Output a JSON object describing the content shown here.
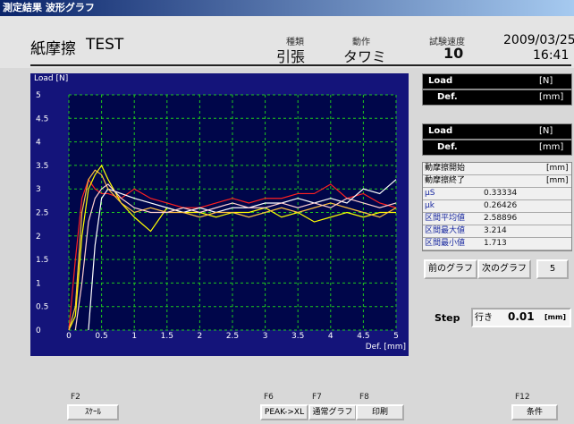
{
  "window": {
    "title": "測定結果 波形グラフ"
  },
  "header": {
    "material": "紙摩擦",
    "sample": "TEST",
    "type_label": "種類",
    "type": "引張",
    "action_label": "動作",
    "action": "タワミ",
    "speed_label": "試験速度",
    "speed": 10,
    "date": "2009/03/25",
    "time": "16:41"
  },
  "chart_data": {
    "type": "line",
    "ylabel": "Load [N]",
    "xlabel": "Def. [mm]",
    "x": [
      0,
      0.1,
      0.2,
      0.3,
      0.4,
      0.5,
      0.6,
      0.8,
      1,
      1.25,
      1.5,
      1.75,
      2,
      2.25,
      2.5,
      2.75,
      3,
      3.25,
      3.5,
      3.75,
      4,
      4.25,
      4.5,
      4.75,
      5
    ],
    "series": [
      {
        "color": "#ff2020",
        "values": [
          0,
          1.5,
          2.8,
          3.2,
          3.0,
          2.9,
          2.9,
          2.8,
          3.0,
          2.8,
          2.7,
          2.6,
          2.6,
          2.7,
          2.8,
          2.7,
          2.8,
          2.8,
          2.9,
          2.9,
          3.1,
          2.8,
          2.9,
          2.7,
          2.6
        ]
      },
      {
        "color": "#ffff00",
        "values": [
          0,
          0.3,
          2.0,
          3.0,
          3.3,
          3.5,
          3.2,
          2.7,
          2.4,
          2.1,
          2.6,
          2.5,
          2.5,
          2.4,
          2.5,
          2.5,
          2.6,
          2.4,
          2.5,
          2.3,
          2.4,
          2.5,
          2.4,
          2.5,
          2.5
        ]
      },
      {
        "color": "#ffffff",
        "values": [
          null,
          null,
          null,
          0,
          1.8,
          2.8,
          3.0,
          2.9,
          2.8,
          2.7,
          2.6,
          2.5,
          2.6,
          2.5,
          2.6,
          2.6,
          2.7,
          2.7,
          2.8,
          2.7,
          2.8,
          2.7,
          3.0,
          2.9,
          3.2
        ]
      },
      {
        "color": "#ffc040",
        "values": [
          0,
          0.5,
          2.5,
          3.2,
          3.4,
          3.3,
          3.0,
          2.7,
          2.5,
          2.6,
          2.5,
          2.5,
          2.4,
          2.5,
          2.5,
          2.4,
          2.5,
          2.6,
          2.5,
          2.6,
          2.7,
          2.6,
          2.5,
          2.4,
          2.6
        ]
      },
      {
        "color": "#ffd0d0",
        "values": [
          null,
          0,
          1.0,
          2.3,
          2.8,
          3.0,
          3.1,
          2.8,
          2.6,
          2.5,
          2.5,
          2.6,
          2.5,
          2.6,
          2.7,
          2.6,
          2.6,
          2.7,
          2.6,
          2.7,
          2.6,
          2.8,
          2.7,
          2.6,
          2.7
        ]
      }
    ],
    "xlim": [
      0,
      5
    ],
    "xticks": [
      0,
      0.5,
      1,
      1.5,
      2,
      2.5,
      3,
      3.5,
      4,
      4.5,
      5
    ],
    "ylim": [
      0,
      5
    ],
    "yticks": [
      0,
      0.5,
      1,
      1.5,
      2,
      2.5,
      3,
      3.5,
      4,
      4.5,
      5
    ],
    "grid": true
  },
  "readouts": [
    {
      "label": "Load",
      "unit": "[N]"
    },
    {
      "label": "Def.",
      "unit": "[mm]"
    },
    {
      "label": "Load",
      "unit": "[N]"
    },
    {
      "label": "Def.",
      "unit": "[mm]"
    }
  ],
  "results": [
    {
      "label": "動摩擦開始",
      "unit": "[mm]"
    },
    {
      "label": "動摩擦終了",
      "unit": "[mm]"
    },
    {
      "label": "μS",
      "value": 0.33334
    },
    {
      "label": "μk",
      "value": 0.26426
    },
    {
      "label": "区間平均値",
      "value": 2.58896
    },
    {
      "label": "区間最大値",
      "value": 3.214
    },
    {
      "label": "区間最小値",
      "value": 1.713
    }
  ],
  "nav": {
    "prev": "前のグラフ",
    "next": "次のグラフ",
    "count": 5
  },
  "step": {
    "label": "Step",
    "direction": "行き",
    "value": 0.01,
    "unit": "[mm]"
  },
  "function_keys": [
    {
      "key": "F2",
      "label": "ｽｹｰﾙ"
    },
    {
      "key": "F6",
      "label": "PEAK->XL"
    },
    {
      "key": "F7",
      "label": "通常グラフ"
    },
    {
      "key": "F8",
      "label": "印刷"
    },
    {
      "key": "F12",
      "label": "条件"
    }
  ]
}
